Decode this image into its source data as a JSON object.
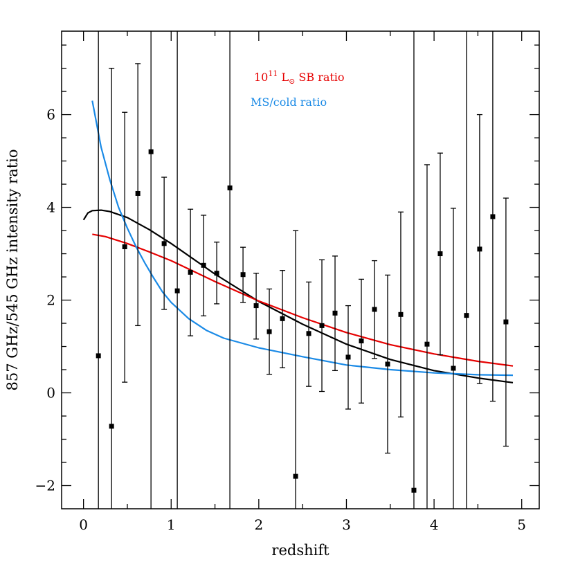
{
  "chart_data": {
    "type": "scatter",
    "xlabel": "redshift",
    "ylabel": "857 GHz/545 GHz intensity ratio",
    "xlim": [
      -0.25,
      5.2
    ],
    "ylim": [
      -2.5,
      7.8
    ],
    "xticks_major": [
      0,
      1,
      2,
      3,
      4,
      5
    ],
    "xticks_major_labels": [
      "0",
      "1",
      "2",
      "3",
      "4",
      "5"
    ],
    "yticks_major": [
      -2,
      0,
      2,
      4,
      6
    ],
    "yticks_major_labels": [
      "−2",
      "0",
      "2",
      "4",
      "6"
    ],
    "grid": false,
    "legend_position": "top-center",
    "points": [
      {
        "x": 0.17,
        "y": 0.8,
        "ylo": -2.5,
        "yhi": 7.8
      },
      {
        "x": 0.32,
        "y": -0.72,
        "ylo": -2.5,
        "yhi": 7.0
      },
      {
        "x": 0.47,
        "y": 3.15,
        "ylo": 0.23,
        "yhi": 6.05
      },
      {
        "x": 0.62,
        "y": 4.3,
        "ylo": 1.45,
        "yhi": 7.1
      },
      {
        "x": 0.77,
        "y": 5.2,
        "ylo": -2.5,
        "yhi": 7.8
      },
      {
        "x": 0.92,
        "y": 3.22,
        "ylo": 1.8,
        "yhi": 4.65
      },
      {
        "x": 1.07,
        "y": 2.2,
        "ylo": -2.5,
        "yhi": 7.8
      },
      {
        "x": 1.22,
        "y": 2.6,
        "ylo": 1.23,
        "yhi": 3.96
      },
      {
        "x": 1.37,
        "y": 2.75,
        "ylo": 1.66,
        "yhi": 3.83
      },
      {
        "x": 1.52,
        "y": 2.58,
        "ylo": 1.92,
        "yhi": 3.25
      },
      {
        "x": 1.67,
        "y": 4.42,
        "ylo": -2.5,
        "yhi": 7.8
      },
      {
        "x": 1.82,
        "y": 2.55,
        "ylo": 1.95,
        "yhi": 3.14
      },
      {
        "x": 1.97,
        "y": 1.88,
        "ylo": 1.16,
        "yhi": 2.58
      },
      {
        "x": 2.12,
        "y": 1.32,
        "ylo": 0.4,
        "yhi": 2.24
      },
      {
        "x": 2.27,
        "y": 1.6,
        "ylo": 0.54,
        "yhi": 2.64
      },
      {
        "x": 2.42,
        "y": -1.8,
        "ylo": -2.5,
        "yhi": 3.5
      },
      {
        "x": 2.57,
        "y": 1.28,
        "ylo": 0.14,
        "yhi": 2.39
      },
      {
        "x": 2.72,
        "y": 1.45,
        "ylo": 0.03,
        "yhi": 2.87
      },
      {
        "x": 2.87,
        "y": 1.72,
        "ylo": 0.48,
        "yhi": 2.95
      },
      {
        "x": 3.02,
        "y": 0.77,
        "ylo": -0.35,
        "yhi": 1.88
      },
      {
        "x": 3.17,
        "y": 1.12,
        "ylo": -0.22,
        "yhi": 2.45
      },
      {
        "x": 3.32,
        "y": 1.8,
        "ylo": 0.74,
        "yhi": 2.85
      },
      {
        "x": 3.47,
        "y": 0.62,
        "ylo": -1.3,
        "yhi": 2.54
      },
      {
        "x": 3.62,
        "y": 1.69,
        "ylo": -0.52,
        "yhi": 3.9
      },
      {
        "x": 3.77,
        "y": -2.1,
        "ylo": -2.5,
        "yhi": 7.8
      },
      {
        "x": 3.92,
        "y": 1.05,
        "ylo": -2.5,
        "yhi": 4.92
      },
      {
        "x": 4.07,
        "y": 3.0,
        "ylo": 0.82,
        "yhi": 5.17
      },
      {
        "x": 4.22,
        "y": 0.53,
        "ylo": -2.5,
        "yhi": 3.98
      },
      {
        "x": 4.37,
        "y": 1.67,
        "ylo": -2.5,
        "yhi": 7.8
      },
      {
        "x": 4.52,
        "y": 3.1,
        "ylo": 0.2,
        "yhi": 6.0
      },
      {
        "x": 4.67,
        "y": 3.8,
        "ylo": -0.18,
        "yhi": 7.8
      },
      {
        "x": 4.82,
        "y": 1.53,
        "ylo": -1.15,
        "yhi": 4.2
      }
    ],
    "series": [
      {
        "color": "#000000",
        "x": [
          0.0,
          0.05,
          0.1,
          0.2,
          0.3,
          0.5,
          0.75,
          1.0,
          1.5,
          2.0,
          2.5,
          3.0,
          3.5,
          4.0,
          4.5,
          4.9
        ],
        "y": [
          3.73,
          3.88,
          3.93,
          3.94,
          3.91,
          3.78,
          3.52,
          3.22,
          2.56,
          1.97,
          1.48,
          1.05,
          0.72,
          0.48,
          0.32,
          0.22
        ]
      },
      {
        "name": "10¹¹ L⊙ SB ratio",
        "color": "#e60000",
        "x": [
          0.1,
          0.25,
          0.5,
          0.75,
          1.0,
          1.5,
          2.0,
          2.5,
          3.0,
          3.5,
          4.0,
          4.5,
          4.9
        ],
        "y": [
          3.42,
          3.37,
          3.22,
          3.04,
          2.85,
          2.4,
          1.98,
          1.62,
          1.3,
          1.04,
          0.84,
          0.68,
          0.58
        ]
      },
      {
        "name": "MS/cold ratio",
        "color": "#1a8ae6",
        "x": [
          0.1,
          0.2,
          0.3,
          0.4,
          0.5,
          0.6,
          0.7,
          0.8,
          0.9,
          1.0,
          1.2,
          1.4,
          1.6,
          2.0,
          2.5,
          3.0,
          3.5,
          4.0,
          4.5,
          4.9
        ],
        "y": [
          6.3,
          5.3,
          4.6,
          4.0,
          3.55,
          3.15,
          2.8,
          2.48,
          2.18,
          1.95,
          1.6,
          1.35,
          1.18,
          0.97,
          0.78,
          0.6,
          0.5,
          0.43,
          0.39,
          0.38
        ]
      }
    ],
    "legend": [
      {
        "base": "10",
        "exp": "11",
        "mid": " L",
        "sub": "⊙",
        "tail": " SB ratio",
        "color": "#e60000"
      },
      {
        "base": "MS/cold ratio",
        "color": "#1a8ae6"
      }
    ]
  }
}
